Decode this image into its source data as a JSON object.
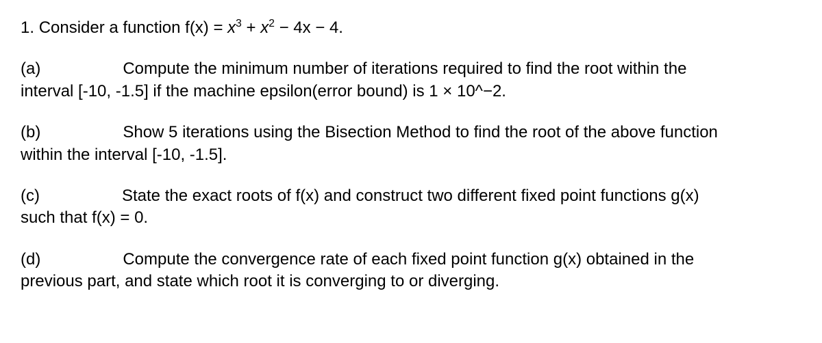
{
  "problem": {
    "number": "1.",
    "intro_prefix": "Consider a function f(x) = ",
    "func_base1": "x",
    "func_exp1": "3",
    "plus1": " + ",
    "func_base2": "x",
    "func_exp2": "2",
    "tail": " − 4x − 4."
  },
  "parts": {
    "a": {
      "label": "(a)",
      "line1": "Compute the minimum number of iterations required to find the root within the",
      "line2": "interval [-10, -1.5] if the machine epsilon(error bound) is 1 × 10^−2."
    },
    "b": {
      "label": "(b)",
      "line1": "Show 5 iterations using the Bisection Method to find the root of the above function",
      "line2": "within the interval [-10, -1.5]."
    },
    "c": {
      "label": "(c)",
      "line1": "State the exact roots of f(x) and construct two different fixed point functions g(x)",
      "line2": "such that f(x) = 0."
    },
    "d": {
      "label": "(d)",
      "line1": "Compute the convergence rate of each fixed point function g(x) obtained in the",
      "line2": "previous part, and state which root it is converging to or diverging."
    }
  },
  "style": {
    "font_size_pt": 18,
    "text_color": "#000000",
    "background_color": "#ffffff"
  }
}
